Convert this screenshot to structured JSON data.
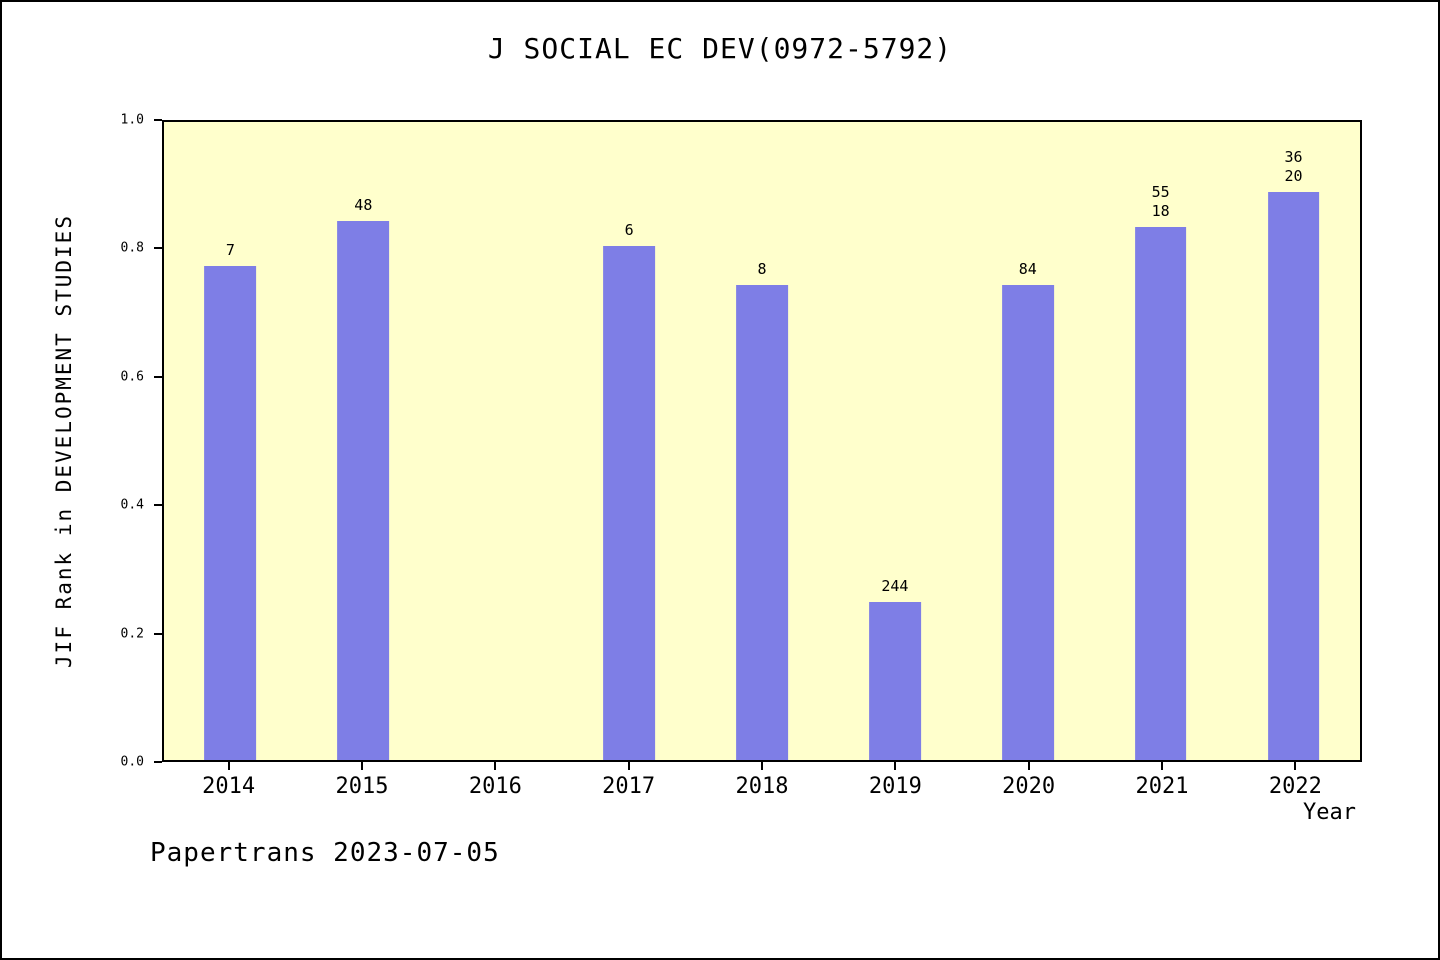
{
  "footer": "Papertrans 2023-07-05",
  "colors": {
    "bar": "#7e7ee6",
    "plot_background": "#ffffcc",
    "axis": "#000000",
    "page_background": "#ffffff"
  },
  "chart_data": {
    "type": "bar",
    "title": "J SOCIAL EC DEV(0972-5792)",
    "xlabel": "Year",
    "ylabel": "JIF Rank in DEVELOPMENT STUDIES",
    "ylim": [
      0.0,
      1.0
    ],
    "yticks": [
      "0.0",
      "0.2",
      "0.4",
      "0.6",
      "0.8",
      "1.0"
    ],
    "grid": false,
    "legend_position": "none",
    "categories": [
      "2014",
      "2015",
      "2016",
      "2017",
      "2018",
      "2019",
      "2020",
      "2021",
      "2022"
    ],
    "values": [
      0.775,
      0.845,
      null,
      0.805,
      0.745,
      0.248,
      0.745,
      0.835,
      0.89
    ],
    "bar_labels": [
      [
        "7"
      ],
      [
        "48"
      ],
      [],
      [
        "6"
      ],
      [
        "8"
      ],
      [
        "244"
      ],
      [
        "84"
      ],
      [
        "55",
        "18"
      ],
      [
        "36",
        "20"
      ]
    ]
  }
}
